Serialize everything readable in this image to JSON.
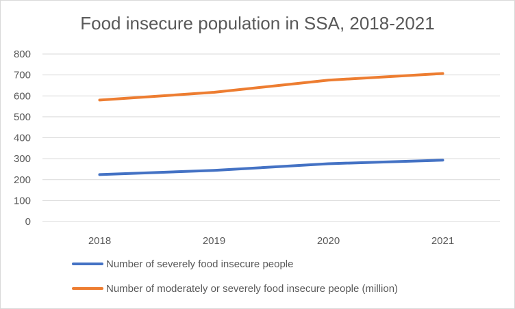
{
  "chart_data": {
    "type": "line",
    "title": "Food insecure population in SSA, 2018-2021",
    "categories": [
      "2018",
      "2019",
      "2020",
      "2021"
    ],
    "ylim": [
      0,
      800
    ],
    "yticks": [
      0,
      100,
      200,
      300,
      400,
      500,
      600,
      700,
      800
    ],
    "grid": true,
    "legend_position": "bottom",
    "series": [
      {
        "name": "Number of severely food insecure people",
        "color": "#4472C4",
        "values": [
          224,
          244,
          276,
          293
        ]
      },
      {
        "name": "Number of moderately or severely food insecure people (million)",
        "color": "#ED7D31",
        "values": [
          580,
          617,
          675,
          707
        ]
      }
    ]
  }
}
